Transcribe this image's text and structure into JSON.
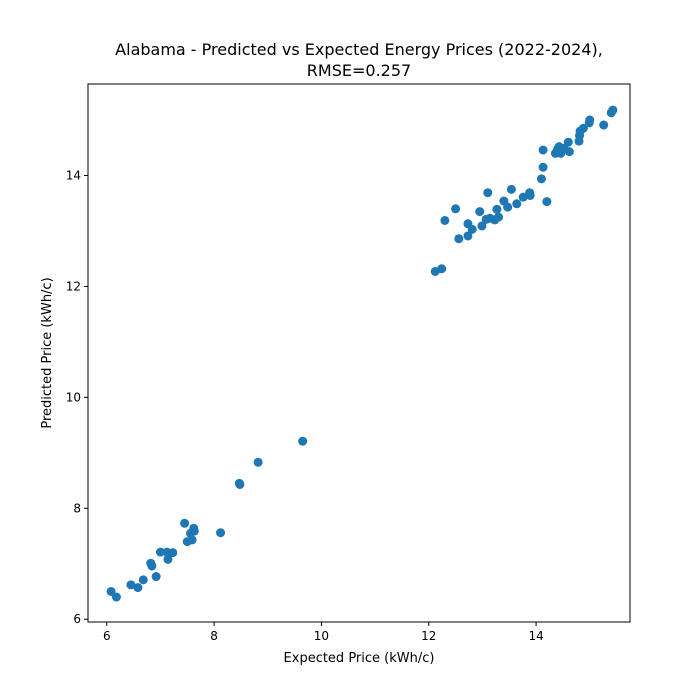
{
  "chart_data": {
    "type": "scatter",
    "title_line1": "Alabama - Predicted vs Expected Energy Prices (2022-2024),",
    "title_line2": "RMSE=0.257",
    "xlabel": "Expected Price (kWh/c)",
    "ylabel": "Predicted Price (kWh/c)",
    "xlim": [
      5.65,
      15.75
    ],
    "ylim": [
      5.95,
      15.65
    ],
    "xticks": [
      6,
      8,
      10,
      12,
      14
    ],
    "yticks": [
      6,
      8,
      10,
      12,
      14
    ],
    "grid": false,
    "marker_color": "#1f77b4",
    "points": [
      {
        "x": 6.08,
        "y": 6.5
      },
      {
        "x": 6.18,
        "y": 6.4
      },
      {
        "x": 6.45,
        "y": 6.62
      },
      {
        "x": 6.58,
        "y": 6.57
      },
      {
        "x": 6.68,
        "y": 6.71
      },
      {
        "x": 6.82,
        "y": 7.01
      },
      {
        "x": 6.84,
        "y": 6.96
      },
      {
        "x": 6.92,
        "y": 6.77
      },
      {
        "x": 7.0,
        "y": 7.21
      },
      {
        "x": 7.12,
        "y": 7.21
      },
      {
        "x": 7.14,
        "y": 7.08
      },
      {
        "x": 7.23,
        "y": 7.2
      },
      {
        "x": 7.45,
        "y": 7.73
      },
      {
        "x": 7.5,
        "y": 7.4
      },
      {
        "x": 7.56,
        "y": 7.55
      },
      {
        "x": 7.59,
        "y": 7.43
      },
      {
        "x": 7.62,
        "y": 7.64
      },
      {
        "x": 7.63,
        "y": 7.59
      },
      {
        "x": 8.12,
        "y": 7.56
      },
      {
        "x": 8.47,
        "y": 8.45
      },
      {
        "x": 8.48,
        "y": 8.43
      },
      {
        "x": 8.82,
        "y": 8.83
      },
      {
        "x": 9.65,
        "y": 9.21
      },
      {
        "x": 12.12,
        "y": 12.27
      },
      {
        "x": 12.24,
        "y": 12.32
      },
      {
        "x": 12.3,
        "y": 13.19
      },
      {
        "x": 12.5,
        "y": 13.4
      },
      {
        "x": 12.56,
        "y": 12.86
      },
      {
        "x": 12.73,
        "y": 12.91
      },
      {
        "x": 12.73,
        "y": 13.13
      },
      {
        "x": 12.81,
        "y": 13.03
      },
      {
        "x": 12.95,
        "y": 13.35
      },
      {
        "x": 12.99,
        "y": 13.09
      },
      {
        "x": 13.07,
        "y": 13.21
      },
      {
        "x": 13.1,
        "y": 13.69
      },
      {
        "x": 13.14,
        "y": 13.23
      },
      {
        "x": 13.23,
        "y": 13.2
      },
      {
        "x": 13.27,
        "y": 13.39
      },
      {
        "x": 13.3,
        "y": 13.25
      },
      {
        "x": 13.4,
        "y": 13.54
      },
      {
        "x": 13.47,
        "y": 13.43
      },
      {
        "x": 13.54,
        "y": 13.75
      },
      {
        "x": 13.64,
        "y": 13.49
      },
      {
        "x": 13.76,
        "y": 13.61
      },
      {
        "x": 13.88,
        "y": 13.69
      },
      {
        "x": 13.89,
        "y": 13.64
      },
      {
        "x": 14.1,
        "y": 13.94
      },
      {
        "x": 14.13,
        "y": 14.15
      },
      {
        "x": 14.13,
        "y": 14.46
      },
      {
        "x": 14.2,
        "y": 13.53
      },
      {
        "x": 14.36,
        "y": 14.4
      },
      {
        "x": 14.4,
        "y": 14.47
      },
      {
        "x": 14.43,
        "y": 14.52
      },
      {
        "x": 14.46,
        "y": 14.4
      },
      {
        "x": 14.52,
        "y": 14.49
      },
      {
        "x": 14.6,
        "y": 14.6
      },
      {
        "x": 14.62,
        "y": 14.43
      },
      {
        "x": 14.8,
        "y": 14.62
      },
      {
        "x": 14.81,
        "y": 14.72
      },
      {
        "x": 14.82,
        "y": 14.8
      },
      {
        "x": 14.88,
        "y": 14.85
      },
      {
        "x": 14.99,
        "y": 14.95
      },
      {
        "x": 15.0,
        "y": 15.0
      },
      {
        "x": 15.26,
        "y": 14.91
      },
      {
        "x": 15.4,
        "y": 15.13
      },
      {
        "x": 15.43,
        "y": 15.18
      }
    ]
  }
}
